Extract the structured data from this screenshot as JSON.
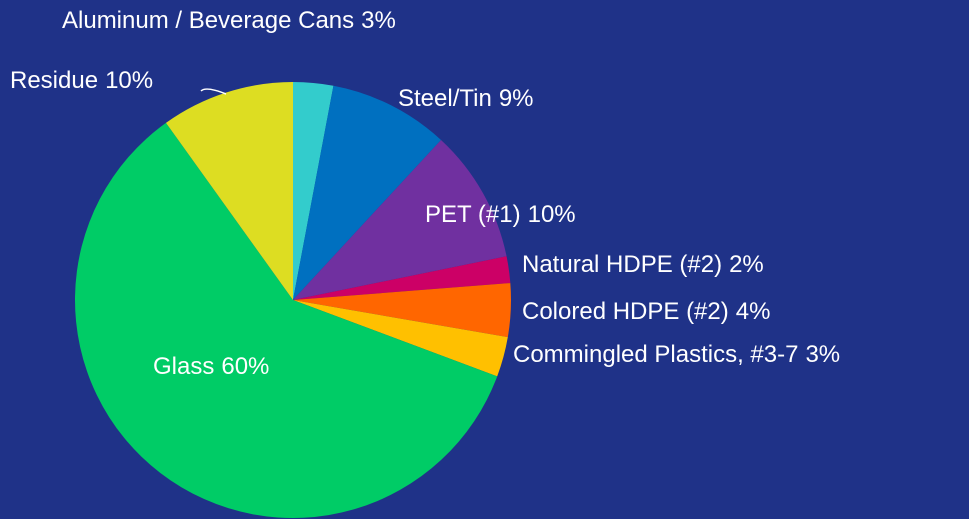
{
  "chart_data": {
    "type": "pie",
    "categories": [
      "Aluminum / Beverage Cans",
      "Steel/Tin",
      "PET (#1)",
      "Natural HDPE (#2)",
      "Colored HDPE (#2)",
      "Commingled Plastics, #3-7",
      "Glass",
      "Residue"
    ],
    "values": [
      3,
      9,
      10,
      2,
      4,
      3,
      60,
      10
    ],
    "value_labels": [
      "3%",
      "9%",
      "10%",
      "2%",
      "4%",
      "3%",
      "60%",
      "10%"
    ],
    "colors": [
      "#33cccc",
      "#0070c0",
      "#7030a0",
      "#cc0066",
      "#ff6600",
      "#ffc000",
      "#00cc66",
      "#dddd22"
    ]
  }
}
